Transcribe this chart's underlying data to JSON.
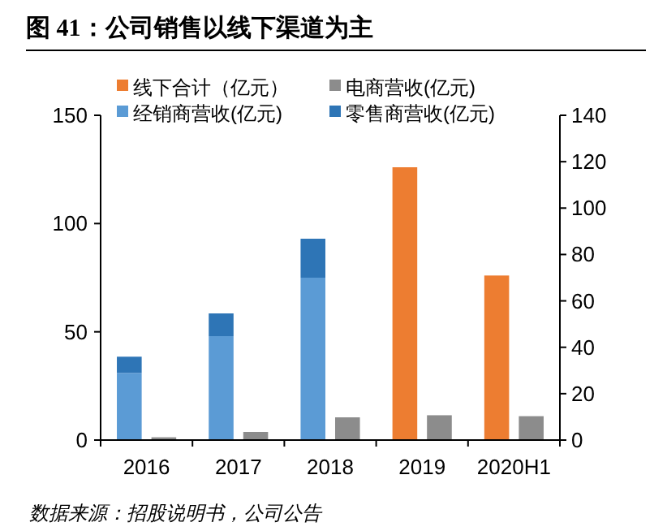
{
  "chart_data": {
    "type": "bar",
    "title": "图 41：公司销售以线下渠道为主",
    "categories": [
      "2016",
      "2017",
      "2018",
      "2019",
      "2020H1"
    ],
    "series": [
      {
        "name": "线下合计（亿元）",
        "color": "#ed7d31",
        "values": [
          null,
          null,
          null,
          126,
          76
        ]
      },
      {
        "name": "电商营收(亿元)",
        "color": "#8c8c8c",
        "axis": "y2",
        "values": [
          1.2,
          3.5,
          9.8,
          10.7,
          10.3
        ]
      },
      {
        "name": "经销商营收(亿元)",
        "color": "#5b9bd5",
        "values": [
          31,
          48,
          75,
          null,
          null
        ]
      },
      {
        "name": "零售商营收(亿元)",
        "color": "#2e75b6",
        "values": [
          7.5,
          10.5,
          18,
          null,
          null
        ]
      }
    ],
    "stacked": true,
    "ylim": [
      0,
      150
    ],
    "yticks": [
      0,
      50,
      100,
      150
    ],
    "y2lim": [
      0,
      140
    ],
    "y2ticks": [
      0,
      20,
      40,
      60,
      80,
      100,
      120,
      140
    ],
    "legend": "top",
    "annotations": [
      "数据来源：招股说明书，公司公告"
    ]
  }
}
